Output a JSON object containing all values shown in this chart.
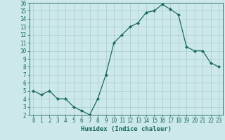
{
  "x": [
    0,
    1,
    2,
    3,
    4,
    5,
    6,
    7,
    8,
    9,
    10,
    11,
    12,
    13,
    14,
    15,
    16,
    17,
    18,
    19,
    20,
    21,
    22,
    23
  ],
  "y": [
    5.0,
    4.5,
    5.0,
    4.0,
    4.0,
    3.0,
    2.5,
    2.0,
    4.0,
    7.0,
    11.0,
    12.0,
    13.0,
    13.5,
    14.8,
    15.0,
    15.8,
    15.2,
    14.5,
    10.5,
    10.0,
    10.0,
    8.5,
    8.0
  ],
  "line_color": "#1a6b5a",
  "marker": "D",
  "marker_size": 2.2,
  "bg_color": "#cce8e8",
  "grid_color": "#aacccc",
  "xlabel": "Humidex (Indice chaleur)",
  "xlim": [
    -0.5,
    23.5
  ],
  "ylim": [
    2,
    16
  ],
  "xticks": [
    0,
    1,
    2,
    3,
    4,
    5,
    6,
    7,
    8,
    9,
    10,
    11,
    12,
    13,
    14,
    15,
    16,
    17,
    18,
    19,
    20,
    21,
    22,
    23
  ],
  "yticks": [
    2,
    3,
    4,
    5,
    6,
    7,
    8,
    9,
    10,
    11,
    12,
    13,
    14,
    15,
    16
  ],
  "tick_fontsize": 5.5,
  "xlabel_fontsize": 6.5,
  "axis_color": "#1a6b5a",
  "tick_color": "#1a6b5a"
}
